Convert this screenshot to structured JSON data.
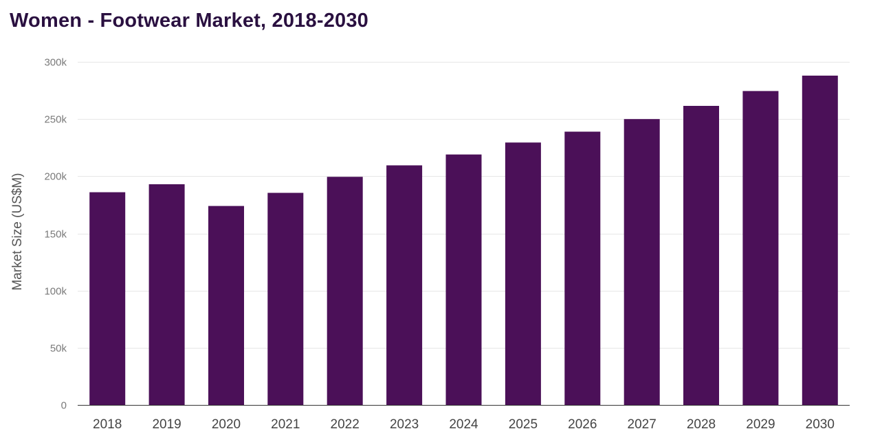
{
  "chart_data": {
    "type": "bar",
    "title": "Women - Footwear Market, 2018-2030",
    "xlabel": "",
    "ylabel": "Market Size (US$M)",
    "categories": [
      "2018",
      "2019",
      "2020",
      "2021",
      "2022",
      "2023",
      "2024",
      "2025",
      "2026",
      "2027",
      "2028",
      "2029",
      "2030"
    ],
    "values": [
      186000,
      193000,
      174000,
      185500,
      199500,
      209500,
      219000,
      229500,
      239000,
      250000,
      261500,
      274500,
      288000
    ],
    "ylim": [
      0,
      300000
    ],
    "yticks": [
      0,
      50000,
      100000,
      150000,
      200000,
      250000,
      300000
    ],
    "ytick_labels": [
      "0",
      "50k",
      "100k",
      "150k",
      "200k",
      "250k",
      "300k"
    ],
    "grid": true,
    "legend": "none",
    "bar_color": "#4b1058"
  }
}
